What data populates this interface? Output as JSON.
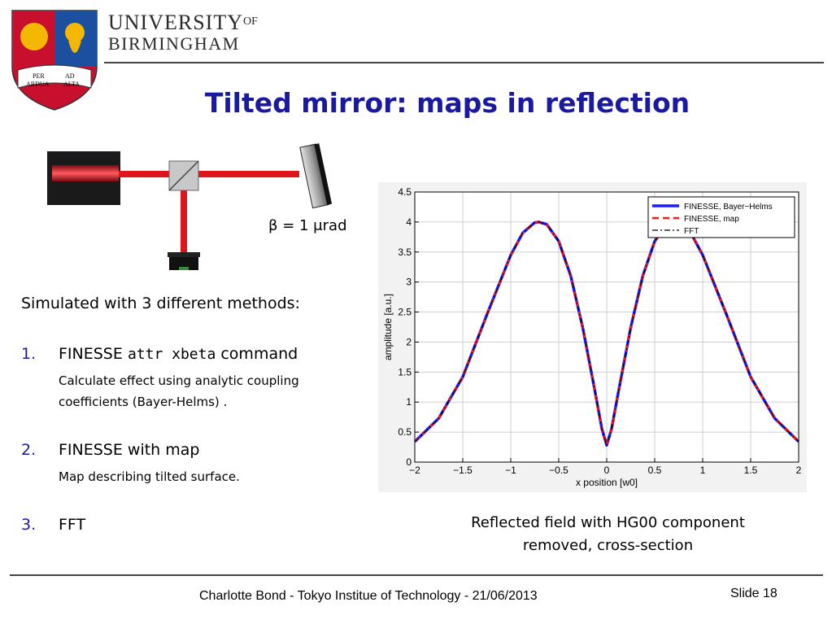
{
  "header": {
    "university_line1": "UNIVERSITY",
    "university_of": "OF",
    "university_line2": "BIRMINGHAM",
    "crest_motto": [
      "PER",
      "AD",
      "ARDUA",
      "ALTA"
    ]
  },
  "slide": {
    "title": "Tilted mirror: maps in reflection",
    "beta_label": "β = 1 μrad",
    "intro": "Simulated with 3 different methods:",
    "methods": [
      {
        "number": "1.",
        "label": "FINESSE",
        "code": "attr xbeta",
        "label_suffix": "command",
        "sub": [
          "Calculate effect using analytic coupling",
          "coefficients (Bayer-Helms) ."
        ]
      },
      {
        "number": "2.",
        "label": "FINESSE with map",
        "sub": [
          "Map describing tilted surface."
        ]
      },
      {
        "number": "3.",
        "label": "FFT",
        "sub": []
      }
    ],
    "caption_line1": "Reflected field with HG00 component",
    "caption_line2": "removed, cross-section"
  },
  "footer": {
    "text": "Charlotte Bond - Tokyo Institue of Technology - 21/06/2013",
    "slide_number": "Slide 18"
  },
  "chart_data": {
    "type": "line",
    "xlabel": "x position [w0]",
    "ylabel": "amplitude [a.u.]",
    "xlim": [
      -2,
      2
    ],
    "ylim": [
      0,
      4.5
    ],
    "xticks": [
      -2,
      -1.5,
      -1,
      -0.5,
      0,
      0.5,
      1,
      1.5,
      2
    ],
    "xtick_labels": [
      "−2",
      "−1.5",
      "−1",
      "−0.5",
      "0",
      "0.5",
      "1",
      "1.5",
      "2"
    ],
    "yticks": [
      0,
      0.5,
      1,
      1.5,
      2,
      2.5,
      3,
      3.5,
      4,
      4.5
    ],
    "ytick_labels": [
      "0",
      "0.5",
      "1",
      "1.5",
      "2",
      "2.5",
      "3",
      "3.5",
      "4",
      "4.5"
    ],
    "grid": true,
    "legend_position": "top-right",
    "x": [
      -2,
      -1.75,
      -1.5,
      -1.25,
      -1,
      -0.875,
      -0.75,
      -0.707,
      -0.625,
      -0.5,
      -0.375,
      -0.25,
      -0.125,
      -0.05,
      0,
      0.05,
      0.125,
      0.25,
      0.375,
      0.5,
      0.625,
      0.707,
      0.75,
      0.875,
      1,
      1.25,
      1.5,
      1.75,
      2
    ],
    "series": [
      {
        "name": "FINESSE, Bayer−Helms",
        "color": "#1a1aff",
        "style": "solid",
        "values": [
          0.34,
          0.73,
          1.42,
          2.45,
          3.45,
          3.82,
          3.99,
          4.0,
          3.96,
          3.68,
          3.1,
          2.24,
          1.2,
          0.55,
          0.28,
          0.55,
          1.2,
          2.24,
          3.1,
          3.68,
          3.96,
          4.0,
          3.99,
          3.82,
          3.45,
          2.45,
          1.42,
          0.73,
          0.34
        ]
      },
      {
        "name": "FINESSE, map",
        "color": "#ff1a1a",
        "style": "dashed",
        "values": [
          0.34,
          0.73,
          1.42,
          2.45,
          3.45,
          3.82,
          3.99,
          4.0,
          3.96,
          3.68,
          3.1,
          2.24,
          1.2,
          0.55,
          0.28,
          0.55,
          1.2,
          2.24,
          3.1,
          3.68,
          3.96,
          4.0,
          3.99,
          3.82,
          3.45,
          2.45,
          1.42,
          0.73,
          0.34
        ]
      },
      {
        "name": "FFT",
        "color": "#000000",
        "style": "dashdot",
        "values": [
          0.34,
          0.73,
          1.42,
          2.45,
          3.45,
          3.82,
          3.99,
          4.0,
          3.96,
          3.68,
          3.1,
          2.24,
          1.2,
          0.55,
          0.28,
          0.55,
          1.2,
          2.24,
          3.1,
          3.68,
          3.96,
          4.0,
          3.99,
          3.82,
          3.45,
          2.45,
          1.42,
          0.73,
          0.34
        ]
      }
    ]
  },
  "colors": {
    "title": "#1a1aa0",
    "laser_beam": "#e0151b",
    "crest_red": "#c8102e",
    "crest_gold": "#f5b800",
    "crest_blue": "#1b4fa0"
  }
}
